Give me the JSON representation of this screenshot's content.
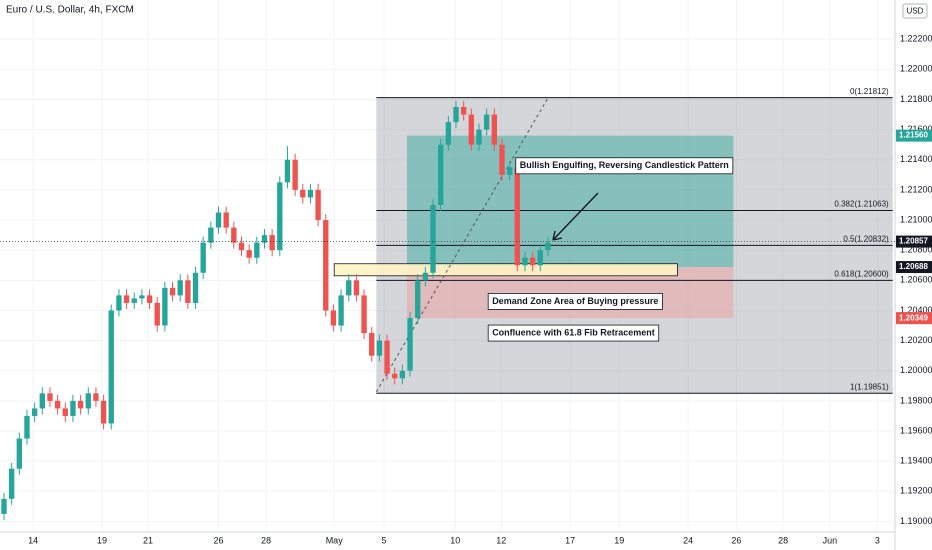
{
  "chart_data": {
    "type": "candlestick",
    "title": "Euro / U.S. Dollar, 4h, FXCM",
    "currency": "USD",
    "up_color": "#26a69a",
    "down_color": "#ef5350",
    "grid": true,
    "ylim": [
      1.1893,
      1.2246
    ],
    "xlim": [
      -0.522,
      116.3
    ],
    "yticks": [
      {
        "value": 1.19,
        "label": "1.19000"
      },
      {
        "value": 1.192,
        "label": "1.19200"
      },
      {
        "value": 1.194,
        "label": "1.19400"
      },
      {
        "value": 1.196,
        "label": "1.19600"
      },
      {
        "value": 1.198,
        "label": "1.19800"
      },
      {
        "value": 1.2,
        "label": "1.20000"
      },
      {
        "value": 1.202,
        "label": "1.20200"
      },
      {
        "value": 1.204,
        "label": "1.20400"
      },
      {
        "value": 1.206,
        "label": "1.20600"
      },
      {
        "value": 1.208,
        "label": "1.20800"
      },
      {
        "value": 1.21,
        "label": "1.21000"
      },
      {
        "value": 1.212,
        "label": "1.21200"
      },
      {
        "value": 1.214,
        "label": "1.21400"
      },
      {
        "value": 1.216,
        "label": "1.21600"
      },
      {
        "value": 1.218,
        "label": "1.21800"
      },
      {
        "value": 1.22,
        "label": "1.22000"
      },
      {
        "value": 1.222,
        "label": "1.22200"
      }
    ],
    "xticks": [
      {
        "value": 3.8,
        "label": "14"
      },
      {
        "value": 12.8,
        "label": "19"
      },
      {
        "value": 18.8,
        "label": "21"
      },
      {
        "value": 28,
        "label": "26"
      },
      {
        "value": 34.2,
        "label": "28"
      },
      {
        "value": 43.1,
        "label": "May"
      },
      {
        "value": 49.6,
        "label": "5"
      },
      {
        "value": 58.9,
        "label": "10"
      },
      {
        "value": 64.9,
        "label": "12"
      },
      {
        "value": 73.9,
        "label": "17"
      },
      {
        "value": 80.3,
        "label": "19"
      },
      {
        "value": 89.3,
        "label": "24"
      },
      {
        "value": 95.6,
        "label": "26"
      },
      {
        "value": 101.7,
        "label": "28"
      },
      {
        "value": 107.8,
        "label": "Jun"
      },
      {
        "value": 114,
        "label": "3"
      }
    ],
    "ohlc": [
      [
        1.1905,
        1.1919,
        1.1901,
        1.1915
      ],
      [
        1.1915,
        1.1939,
        1.1911,
        1.1935
      ],
      [
        1.1935,
        1.1959,
        1.1931,
        1.1955
      ],
      [
        1.1955,
        1.1974,
        1.1951,
        1.197
      ],
      [
        1.197,
        1.1979,
        1.1966,
        1.1975
      ],
      [
        1.1975,
        1.1989,
        1.1971,
        1.1985
      ],
      [
        1.1985,
        1.1989,
        1.1976,
        1.198
      ],
      [
        1.198,
        1.1984,
        1.1971,
        1.1975
      ],
      [
        1.1975,
        1.1979,
        1.1966,
        1.197
      ],
      [
        1.197,
        1.1984,
        1.1966,
        1.198
      ],
      [
        1.198,
        1.1984,
        1.1971,
        1.1975
      ],
      [
        1.1975,
        1.1989,
        1.1971,
        1.1985
      ],
      [
        1.1985,
        1.1989,
        1.1976,
        1.198
      ],
      [
        1.198,
        1.1984,
        1.1961,
        1.1965
      ],
      [
        1.1965,
        1.2044,
        1.1961,
        1.204
      ],
      [
        1.204,
        1.2054,
        1.2036,
        1.205
      ],
      [
        1.205,
        1.2054,
        1.2041,
        1.2045
      ],
      [
        1.2045,
        1.2052,
        1.2041,
        1.2048
      ],
      [
        1.2048,
        1.2054,
        1.2044,
        1.205
      ],
      [
        1.205,
        1.2054,
        1.2041,
        1.2045
      ],
      [
        1.2045,
        1.2049,
        1.2026,
        1.203
      ],
      [
        1.203,
        1.2059,
        1.2026,
        1.2055
      ],
      [
        1.2055,
        1.2059,
        1.2046,
        1.205
      ],
      [
        1.205,
        1.2064,
        1.2046,
        1.206
      ],
      [
        1.206,
        1.2064,
        1.2041,
        1.2045
      ],
      [
        1.2045,
        1.2069,
        1.2041,
        1.2065
      ],
      [
        1.2065,
        1.2089,
        1.2061,
        1.2085
      ],
      [
        1.2085,
        1.2099,
        1.2081,
        1.2095
      ],
      [
        1.2095,
        1.2109,
        1.2091,
        1.2105
      ],
      [
        1.2105,
        1.2109,
        1.2091,
        1.2095
      ],
      [
        1.2095,
        1.2099,
        1.2081,
        1.2085
      ],
      [
        1.2085,
        1.2089,
        1.2076,
        1.208
      ],
      [
        1.208,
        1.2084,
        1.2071,
        1.2075
      ],
      [
        1.2075,
        1.2089,
        1.2071,
        1.2085
      ],
      [
        1.2085,
        1.2094,
        1.2081,
        1.209
      ],
      [
        1.209,
        1.2094,
        1.2076,
        1.208
      ],
      [
        1.208,
        1.2129,
        1.2076,
        1.2125
      ],
      [
        1.2125,
        1.2149,
        1.2121,
        1.214
      ],
      [
        1.214,
        1.2144,
        1.2116,
        1.212
      ],
      [
        1.212,
        1.2124,
        1.2111,
        1.2115
      ],
      [
        1.2115,
        1.2124,
        1.2111,
        1.212
      ],
      [
        1.212,
        1.2124,
        1.2096,
        1.21
      ],
      [
        1.21,
        1.2104,
        1.2036,
        1.204
      ],
      [
        1.204,
        1.2044,
        1.2026,
        1.203
      ],
      [
        1.203,
        1.2054,
        1.2026,
        1.205
      ],
      [
        1.205,
        1.2064,
        1.2046,
        1.206
      ],
      [
        1.206,
        1.2064,
        1.2046,
        1.205
      ],
      [
        1.205,
        1.2054,
        1.2021,
        1.2025
      ],
      [
        1.2025,
        1.2029,
        1.2006,
        1.201
      ],
      [
        1.201,
        1.2024,
        1.2006,
        1.202
      ],
      [
        1.202,
        1.2024,
        1.1994,
        1.1998
      ],
      [
        1.1998,
        1.2002,
        1.1991,
        1.1995
      ],
      [
        1.1995,
        1.2004,
        1.1991,
        1.2
      ],
      [
        1.2,
        1.2039,
        1.1996,
        1.2035
      ],
      [
        1.2035,
        1.2064,
        1.2031,
        1.206
      ],
      [
        1.206,
        1.2069,
        1.2056,
        1.2065
      ],
      [
        1.2065,
        1.2114,
        1.2061,
        1.211
      ],
      [
        1.211,
        1.2154,
        1.2106,
        1.215
      ],
      [
        1.215,
        1.2169,
        1.2146,
        1.2165
      ],
      [
        1.2165,
        1.2179,
        1.2161,
        1.2175
      ],
      [
        1.2175,
        1.2179,
        1.2166,
        1.217
      ],
      [
        1.217,
        1.2174,
        1.2146,
        1.215
      ],
      [
        1.215,
        1.2164,
        1.2146,
        1.216
      ],
      [
        1.216,
        1.2174,
        1.2156,
        1.217
      ],
      [
        1.217,
        1.2174,
        1.2146,
        1.215
      ],
      [
        1.215,
        1.2154,
        1.2126,
        1.213
      ],
      [
        1.213,
        1.2139,
        1.2126,
        1.2135
      ],
      [
        1.2135,
        1.2139,
        1.2066,
        1.207
      ],
      [
        1.207,
        1.2079,
        1.2066,
        1.2075
      ],
      [
        1.2075,
        1.2079,
        1.2066,
        1.207
      ],
      [
        1.207,
        1.2084,
        1.2066,
        1.208
      ],
      [
        1.208,
        1.2089,
        1.2076,
        1.2085
      ]
    ],
    "fib": {
      "start": 48.6,
      "end": 116,
      "levels": [
        {
          "value": 1.21812,
          "label": "0(1.21812)"
        },
        {
          "value": 1.21063,
          "label": "0.382(1.21063)"
        },
        {
          "value": 1.20832,
          "label": "0.5(1.20832)"
        },
        {
          "value": 1.206,
          "label": "0.618(1.20600)"
        },
        {
          "value": 1.19851,
          "label": "1(1.19851)"
        }
      ]
    },
    "zones": [
      {
        "start": 52.6,
        "end": 95.2,
        "top": 1.2156,
        "bottom": 1.20688,
        "color": "#26a69a"
      },
      {
        "start": 52.6,
        "end": 95.2,
        "top": 1.20688,
        "bottom": 1.20349,
        "color": "#ef9a9a"
      },
      {
        "start": 43.1,
        "end": 87.9,
        "top": 1.2071,
        "bottom": 1.2063,
        "color": "#fff3c4"
      }
    ],
    "trendline": {
      "x": [
        48.6,
        71
      ],
      "y": [
        1.1986,
        1.2181
      ]
    },
    "price_labels": [
      {
        "value": 1.2156,
        "label": "1.21560",
        "color": "#26a69a"
      },
      {
        "value": 1.20857,
        "label": "1.20857",
        "color": "#131722"
      },
      {
        "value": 1.20688,
        "label": "1.20688",
        "color": "#131722"
      },
      {
        "value": 1.20349,
        "label": "1.20349",
        "color": "#ef5350"
      }
    ],
    "annotations": [
      {
        "text": "Bullish Engulfing, Reversing Candlestick Pattern",
        "x": 66.8,
        "y": 1.2136
      },
      {
        "text": "Demand Zone Area of Buying pressure",
        "x": 63.2,
        "y": 1.2046
      },
      {
        "text": "Confluence with 61.8 Fib Retracement",
        "x": 63.2,
        "y": 1.2025
      }
    ]
  }
}
